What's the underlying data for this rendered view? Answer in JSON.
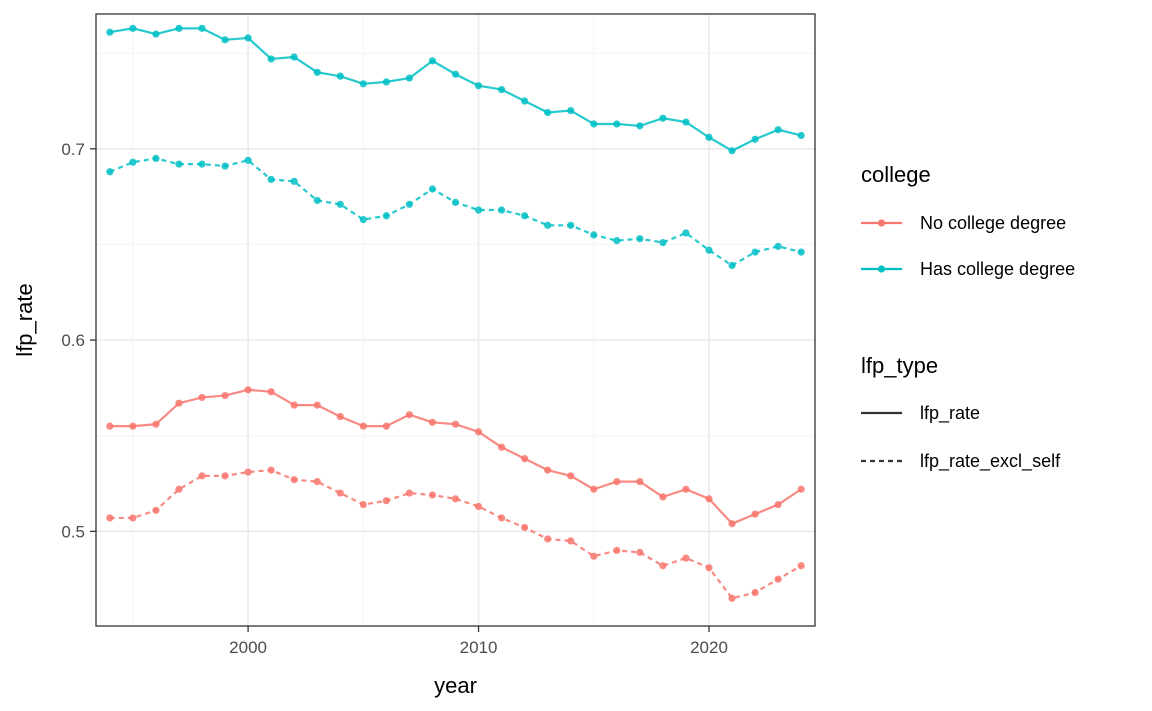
{
  "chart_data": {
    "type": "line",
    "xlabel": "year",
    "ylabel": "lfp_rate",
    "xlim": [
      1993.4,
      2024.6
    ],
    "ylim": [
      0.4505,
      0.7705
    ],
    "x_ticks": [
      2000,
      2010,
      2020
    ],
    "x_tick_labels": [
      "2000",
      "2010",
      "2020"
    ],
    "y_ticks": [
      0.5,
      0.6,
      0.7
    ],
    "y_tick_labels": [
      "0.5",
      "0.6",
      "0.7"
    ],
    "grid": true,
    "x": [
      1994,
      1995,
      1996,
      1997,
      1998,
      1999,
      2000,
      2001,
      2002,
      2003,
      2004,
      2005,
      2006,
      2007,
      2008,
      2009,
      2010,
      2011,
      2012,
      2013,
      2014,
      2015,
      2016,
      2017,
      2018,
      2019,
      2020,
      2021,
      2022,
      2023,
      2024
    ],
    "series": [
      {
        "college": "Has college degree",
        "lfp_type": "lfp_rate",
        "color": "#00BFC4",
        "dash": "solid",
        "values": [
          0.761,
          0.763,
          0.76,
          0.763,
          0.763,
          0.757,
          0.758,
          0.747,
          0.748,
          0.74,
          0.738,
          0.734,
          0.735,
          0.737,
          0.746,
          0.739,
          0.733,
          0.731,
          0.725,
          0.719,
          0.72,
          0.713,
          0.713,
          0.712,
          0.716,
          0.714,
          0.706,
          0.699,
          0.705,
          0.71,
          0.707
        ]
      },
      {
        "college": "Has college degree",
        "lfp_type": "lfp_rate_excl_self",
        "color": "#00BFC4",
        "dash": "dashed",
        "values": [
          0.688,
          0.693,
          0.695,
          0.692,
          0.692,
          0.691,
          0.694,
          0.684,
          0.683,
          0.673,
          0.671,
          0.663,
          0.665,
          0.671,
          0.679,
          0.672,
          0.668,
          0.668,
          0.665,
          0.66,
          0.66,
          0.655,
          0.652,
          0.653,
          0.651,
          0.656,
          0.647,
          0.639,
          0.646,
          0.649,
          0.646
        ]
      },
      {
        "college": "No college degree",
        "lfp_type": "lfp_rate",
        "color": "#F8766D",
        "dash": "solid",
        "values": [
          0.555,
          0.555,
          0.556,
          0.567,
          0.57,
          0.571,
          0.574,
          0.573,
          0.566,
          0.566,
          0.56,
          0.555,
          0.555,
          0.561,
          0.557,
          0.556,
          0.552,
          0.544,
          0.538,
          0.532,
          0.529,
          0.522,
          0.526,
          0.526,
          0.518,
          0.522,
          0.517,
          0.504,
          0.509,
          0.514,
          0.522
        ]
      },
      {
        "college": "No college degree",
        "lfp_type": "lfp_rate_excl_self",
        "color": "#F8766D",
        "dash": "dashed",
        "values": [
          0.507,
          0.507,
          0.511,
          0.522,
          0.529,
          0.529,
          0.531,
          0.532,
          0.527,
          0.526,
          0.52,
          0.514,
          0.516,
          0.52,
          0.519,
          0.517,
          0.513,
          0.507,
          0.502,
          0.496,
          0.495,
          0.487,
          0.49,
          0.489,
          0.482,
          0.486,
          0.481,
          0.465,
          0.468,
          0.475,
          0.482
        ]
      }
    ],
    "legends": [
      {
        "title": "college",
        "entries": [
          {
            "label": "No college degree",
            "color": "#F8766D"
          },
          {
            "label": "Has college degree",
            "color": "#00BFC4"
          }
        ]
      },
      {
        "title": "lfp_type",
        "entries": [
          {
            "label": "lfp_rate",
            "dash": "solid"
          },
          {
            "label": "lfp_rate_excl_self",
            "dash": "dashed"
          }
        ]
      }
    ],
    "legend_position": "right"
  }
}
